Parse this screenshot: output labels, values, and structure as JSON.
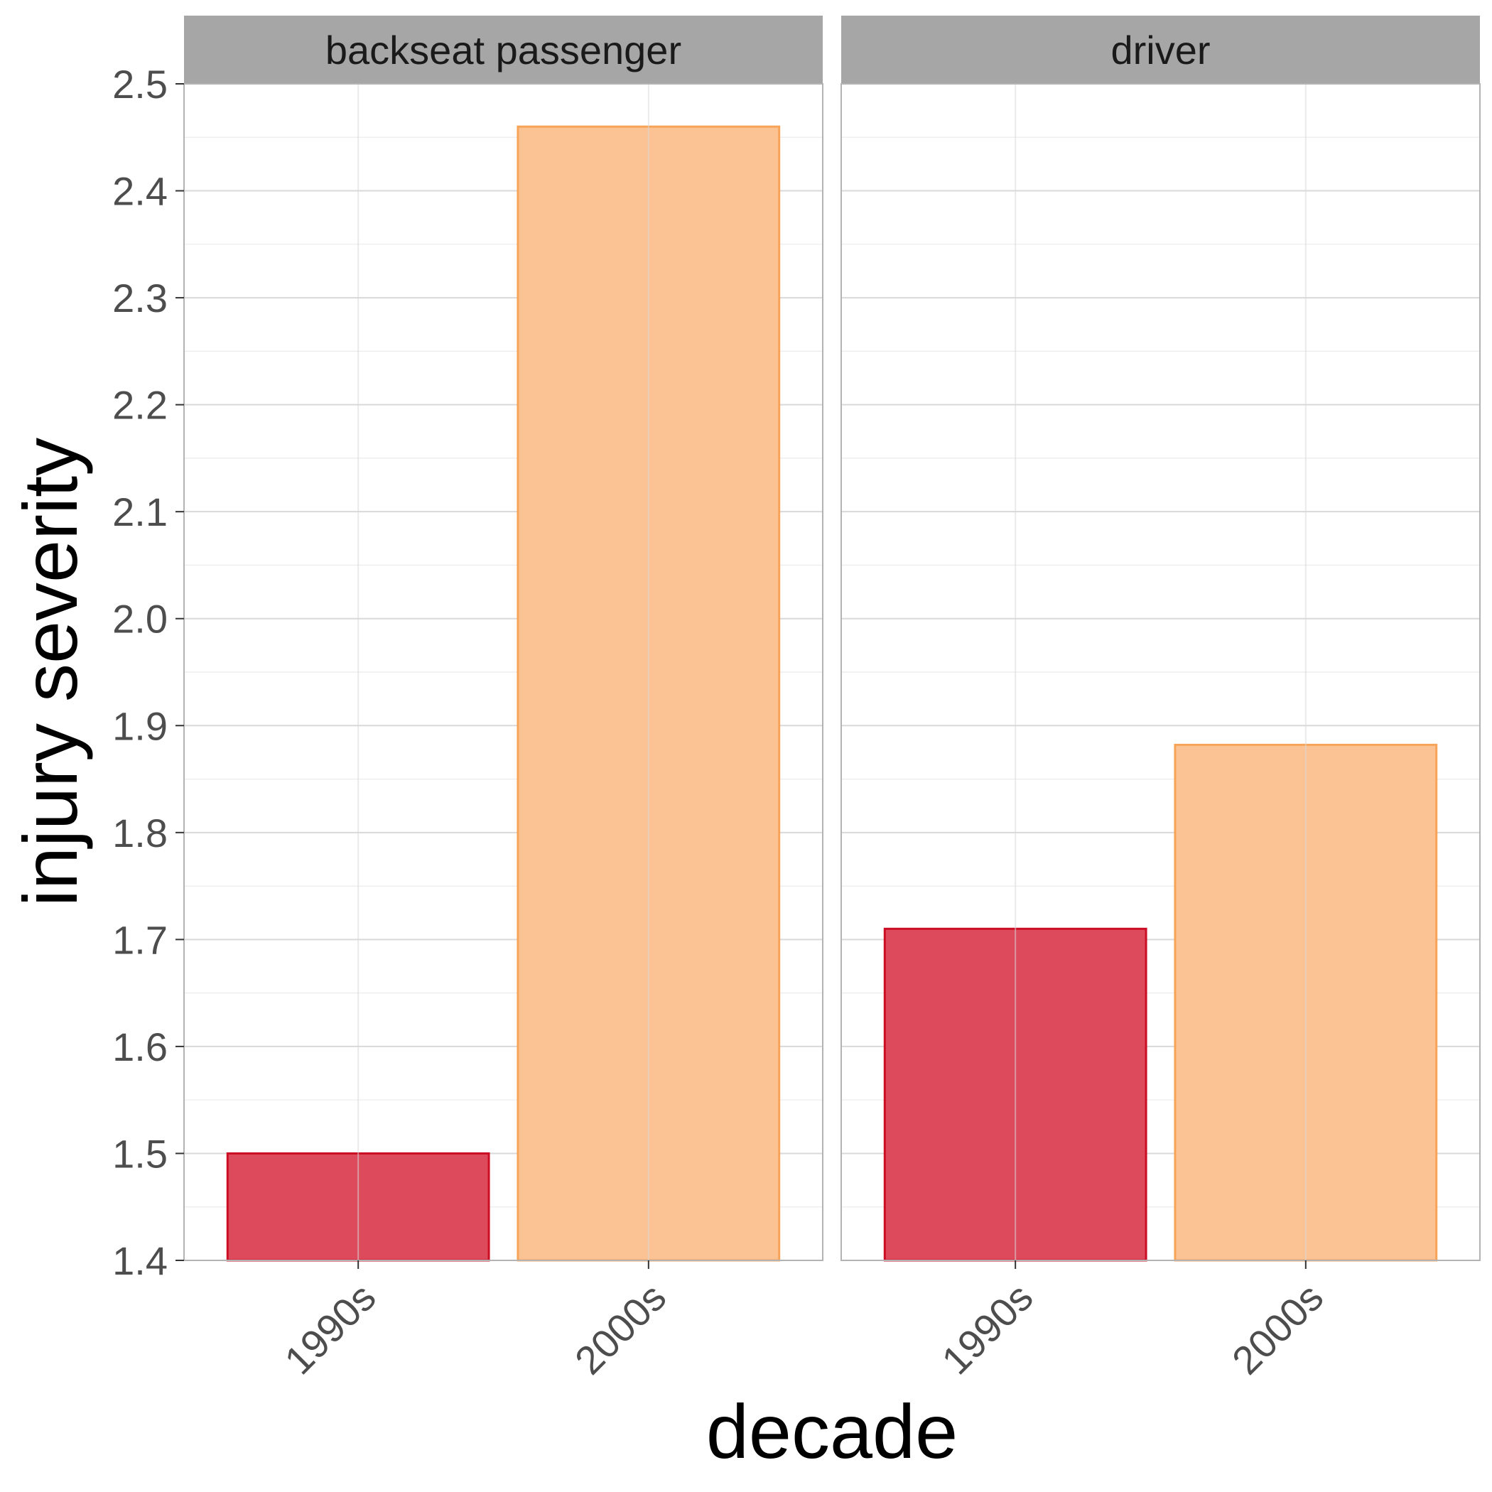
{
  "chart_data": {
    "type": "bar",
    "xlabel": "decade",
    "ylabel": "injury severity",
    "categories": [
      "1990s",
      "2000s"
    ],
    "ylim": [
      1.4,
      2.5
    ],
    "y_ticks": [
      "1.4",
      "1.5",
      "1.6",
      "1.7",
      "1.8",
      "1.9",
      "2.0",
      "2.1",
      "2.2",
      "2.3",
      "2.4",
      "2.5"
    ],
    "grid": true,
    "legend": "none",
    "colors": {
      "1990s": {
        "fill": "#dc4a5c",
        "stroke": "#cc0e25"
      },
      "2000s": {
        "fill": "#fbc294",
        "stroke": "#f7a458"
      }
    },
    "panels": [
      {
        "title": "backseat passenger",
        "values": [
          1.5,
          2.46
        ]
      },
      {
        "title": "driver",
        "values": [
          1.71,
          1.882
        ]
      }
    ]
  }
}
